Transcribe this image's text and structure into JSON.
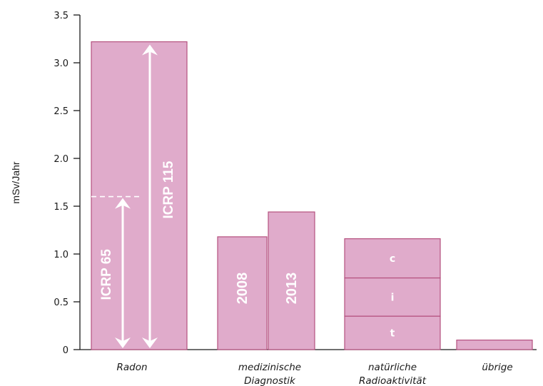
{
  "chart_data": {
    "type": "bar",
    "ylabel": "mSv/Jahr",
    "ylim": [
      0,
      3.5
    ],
    "yticks": [
      "0",
      "0.5",
      "1.0",
      "1.5",
      "2.0",
      "2.5",
      "3.0",
      "3.5"
    ],
    "categories": [
      [
        "Radon"
      ],
      [
        "medizinische",
        "Diagnostik"
      ],
      [
        "natürliche",
        "Radioaktivität"
      ],
      [
        "übrige"
      ]
    ],
    "bars": [
      {
        "category": "Radon",
        "value": 3.22,
        "reference_line": 1.6,
        "arrows": [
          {
            "label": "ICRP 65",
            "from": 0,
            "to": 1.6
          },
          {
            "label": "ICRP 115",
            "from": 0,
            "to": 3.22
          }
        ]
      },
      {
        "category": "medizinische Diagnostik",
        "label": "2008",
        "value": 1.18
      },
      {
        "category": "medizinische Diagnostik",
        "label": "2013",
        "value": 1.44
      },
      {
        "category": "natürliche Radioaktivität",
        "value": 1.16,
        "segments": [
          {
            "label": "t",
            "value": 0.35
          },
          {
            "label": "i",
            "value": 0.4
          },
          {
            "label": "c",
            "value": 0.41
          }
        ]
      },
      {
        "category": "übrige",
        "value": 0.1
      }
    ],
    "colors": {
      "fill": "#e0abcb",
      "stroke": "#b5527f",
      "axis": "#1a1a1a",
      "text_inside": "#ffffff"
    },
    "grid": false,
    "legend": "none"
  }
}
